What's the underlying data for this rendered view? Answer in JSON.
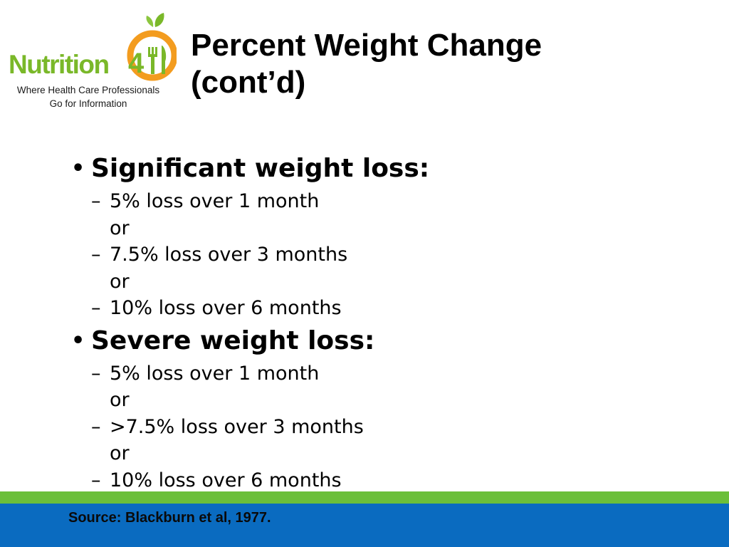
{
  "logo": {
    "wordmark_text": "Nutrition",
    "wordmark_number": "411",
    "tagline_line1": "Where Health Care Professionals",
    "tagline_line2": "Go for Information",
    "colors": {
      "green": "#7ab829",
      "orange": "#f39c1f"
    }
  },
  "title": {
    "line1": "Percent Weight Change",
    "line2": "(cont’d)"
  },
  "sections": [
    {
      "heading": "Significant weight loss:",
      "items": [
        "5% loss over 1 month",
        "or",
        "7.5% loss over 3 months",
        "or",
        "10% loss over 6 months"
      ]
    },
    {
      "heading": "Severe weight loss:",
      "items": [
        "5% loss over 1 month",
        "or",
        ">7.5% loss over 3 months",
        "or",
        "10% loss over 6 months"
      ]
    }
  ],
  "symbols": {
    "bullet": "•",
    "dash": "–"
  },
  "footer": {
    "source": "Source: Blackburn et al, 1977.",
    "colors": {
      "stripe": "#6bbf3a",
      "band": "#0a6bc0"
    }
  }
}
